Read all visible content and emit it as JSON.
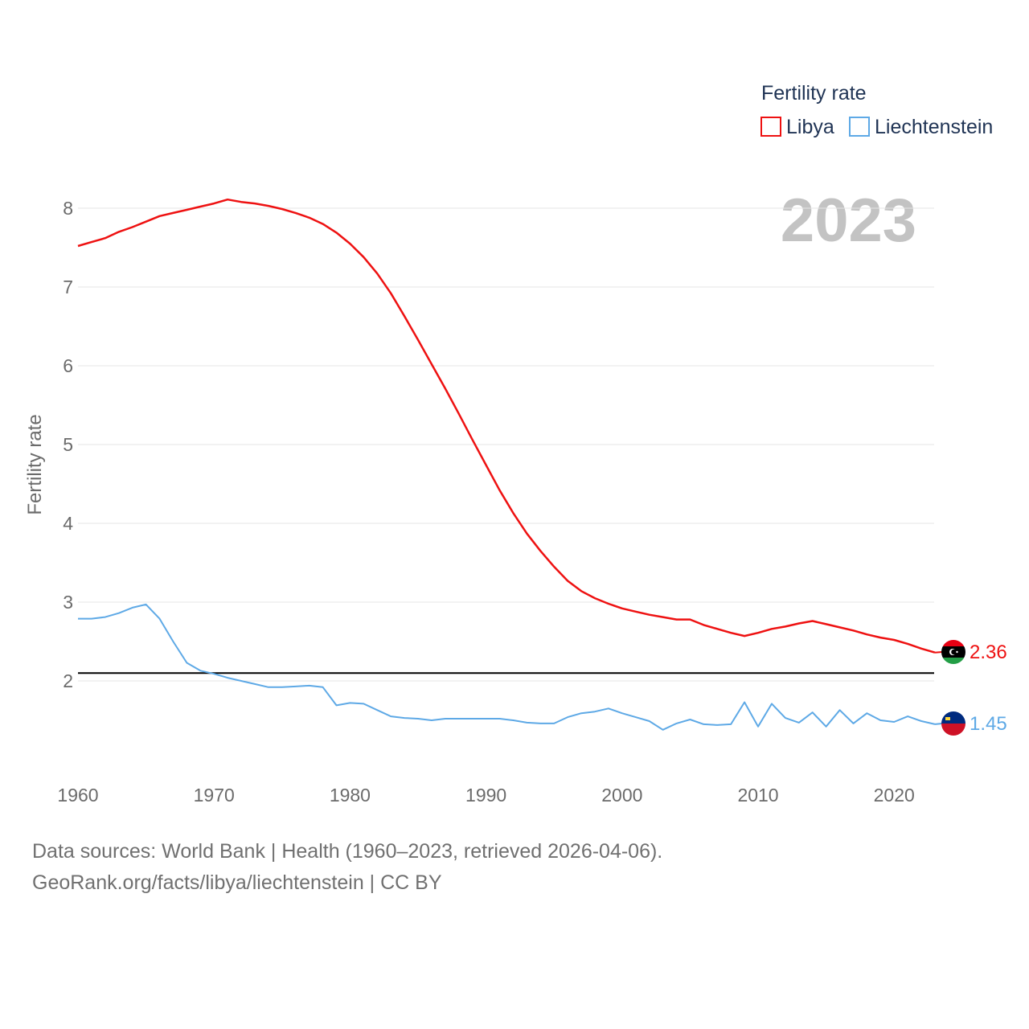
{
  "chart_data": {
    "type": "line",
    "title": "Fertility rate",
    "ylabel": "Fertility rate",
    "xlabel": "",
    "highlight_year": "2023",
    "xlim": [
      1960,
      2023
    ],
    "ylim": [
      1.0,
      8.5
    ],
    "x_ticks": [
      1960,
      1970,
      1980,
      1990,
      2000,
      2010,
      2020
    ],
    "y_ticks": [
      2,
      3,
      4,
      5,
      6,
      7,
      8
    ],
    "reference_line": 2.1,
    "legend_placement": "top-right",
    "series": [
      {
        "name": "Libya",
        "color": "#ee1111",
        "end_label": "2.36",
        "flag": "Libya flag",
        "x": [
          1960,
          1961,
          1962,
          1963,
          1964,
          1965,
          1966,
          1967,
          1968,
          1969,
          1970,
          1971,
          1972,
          1973,
          1974,
          1975,
          1976,
          1977,
          1978,
          1979,
          1980,
          1981,
          1982,
          1983,
          1984,
          1985,
          1986,
          1987,
          1988,
          1989,
          1990,
          1991,
          1992,
          1993,
          1994,
          1995,
          1996,
          1997,
          1998,
          1999,
          2000,
          2001,
          2002,
          2003,
          2004,
          2005,
          2006,
          2007,
          2008,
          2009,
          2010,
          2011,
          2012,
          2013,
          2014,
          2015,
          2016,
          2017,
          2018,
          2019,
          2020,
          2021,
          2022,
          2023
        ],
        "values": [
          7.52,
          7.57,
          7.62,
          7.7,
          7.76,
          7.83,
          7.9,
          7.94,
          7.98,
          8.02,
          8.06,
          8.11,
          8.08,
          8.06,
          8.03,
          7.99,
          7.94,
          7.88,
          7.8,
          7.69,
          7.55,
          7.38,
          7.17,
          6.92,
          6.63,
          6.33,
          6.02,
          5.71,
          5.39,
          5.06,
          4.74,
          4.42,
          4.13,
          3.87,
          3.65,
          3.45,
          3.27,
          3.14,
          3.05,
          2.98,
          2.92,
          2.88,
          2.84,
          2.81,
          2.78,
          2.78,
          2.71,
          2.66,
          2.61,
          2.57,
          2.61,
          2.66,
          2.69,
          2.73,
          2.76,
          2.72,
          2.68,
          2.64,
          2.59,
          2.55,
          2.52,
          2.47,
          2.41,
          2.36
        ]
      },
      {
        "name": "Liechtenstein",
        "color": "#5ea9e6",
        "end_label": "1.45",
        "flag": "Liechtenstein flag",
        "x": [
          1960,
          1961,
          1962,
          1963,
          1964,
          1965,
          1966,
          1967,
          1968,
          1969,
          1970,
          1971,
          1972,
          1973,
          1974,
          1975,
          1976,
          1977,
          1978,
          1979,
          1980,
          1981,
          1982,
          1983,
          1984,
          1985,
          1986,
          1987,
          1988,
          1989,
          1990,
          1991,
          1992,
          1993,
          1994,
          1995,
          1996,
          1997,
          1998,
          1999,
          2000,
          2001,
          2002,
          2003,
          2004,
          2005,
          2006,
          2007,
          2008,
          2009,
          2010,
          2011,
          2012,
          2013,
          2014,
          2015,
          2016,
          2017,
          2018,
          2019,
          2020,
          2021,
          2022,
          2023
        ],
        "values": [
          2.79,
          2.79,
          2.81,
          2.86,
          2.93,
          2.97,
          2.79,
          2.5,
          2.23,
          2.13,
          2.09,
          2.04,
          2.0,
          1.96,
          1.92,
          1.92,
          1.93,
          1.94,
          1.92,
          1.69,
          1.72,
          1.71,
          1.63,
          1.55,
          1.53,
          1.52,
          1.5,
          1.52,
          1.52,
          1.52,
          1.52,
          1.52,
          1.5,
          1.47,
          1.46,
          1.46,
          1.54,
          1.59,
          1.61,
          1.65,
          1.59,
          1.54,
          1.49,
          1.38,
          1.46,
          1.51,
          1.45,
          1.44,
          1.45,
          1.73,
          1.42,
          1.71,
          1.53,
          1.47,
          1.6,
          1.42,
          1.63,
          1.46,
          1.59,
          1.5,
          1.48,
          1.55,
          1.49,
          1.45
        ]
      }
    ]
  },
  "footer": {
    "line1": "Data sources: World Bank | Health (1960–2023, retrieved 2026-04-06).",
    "line2": "GeoRank.org/facts/libya/liechtenstein | CC BY"
  }
}
